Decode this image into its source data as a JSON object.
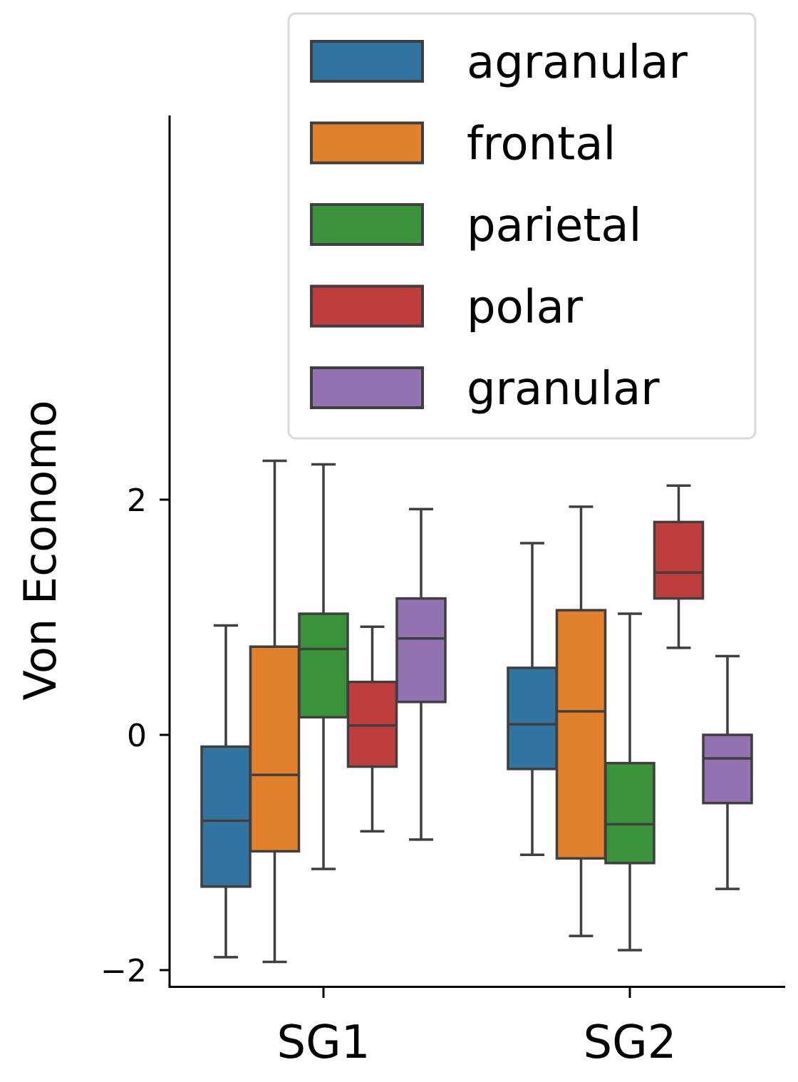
{
  "chart_data": {
    "type": "boxplot",
    "title": "",
    "xlabel": "",
    "ylabel": "Von Economo",
    "categories": [
      "SG1",
      "SG2"
    ],
    "yticks": [
      -2,
      0,
      2
    ],
    "ytick_labels": [
      "−2",
      "0",
      "2"
    ],
    "ylim": [
      -2.15,
      5.3
    ],
    "legend_position": "top-right",
    "series": [
      {
        "name": "agranular",
        "color": "#3274a1",
        "boxes": [
          {
            "whislo": -1.89,
            "q1": -1.29,
            "med": -0.73,
            "q3": -0.1,
            "whishi": 0.93
          },
          {
            "whislo": -1.02,
            "q1": -0.29,
            "med": 0.09,
            "q3": 0.57,
            "whishi": 1.63
          }
        ]
      },
      {
        "name": "frontal",
        "color": "#e1812c",
        "boxes": [
          {
            "whislo": -1.93,
            "q1": -0.99,
            "med": -0.34,
            "q3": 0.75,
            "whishi": 2.33
          },
          {
            "whislo": -1.71,
            "q1": -1.05,
            "med": 0.2,
            "q3": 1.06,
            "whishi": 1.94
          }
        ]
      },
      {
        "name": "parietal",
        "color": "#3a923a",
        "boxes": [
          {
            "whislo": -1.14,
            "q1": 0.15,
            "med": 0.73,
            "q3": 1.03,
            "whishi": 2.3
          },
          {
            "whislo": -1.83,
            "q1": -1.09,
            "med": -0.76,
            "q3": -0.24,
            "whishi": 1.03
          }
        ]
      },
      {
        "name": "polar",
        "color": "#c03d3e",
        "boxes": [
          {
            "whislo": -0.82,
            "q1": -0.27,
            "med": 0.08,
            "q3": 0.45,
            "whishi": 0.92
          },
          {
            "whislo": 0.74,
            "q1": 1.16,
            "med": 1.38,
            "q3": 1.81,
            "whishi": 2.12
          }
        ]
      },
      {
        "name": "granular",
        "color": "#9372b2",
        "boxes": [
          {
            "whislo": -0.89,
            "q1": 0.28,
            "med": 0.82,
            "q3": 1.16,
            "whishi": 1.92
          },
          {
            "whislo": -1.31,
            "q1": -0.58,
            "med": -0.2,
            "q3": 0.0,
            "whishi": 0.67
          }
        ]
      }
    ]
  },
  "colors": {
    "edge": "#3f3f3f",
    "axis": "#000000",
    "legend_border": "#d9d9d9"
  }
}
